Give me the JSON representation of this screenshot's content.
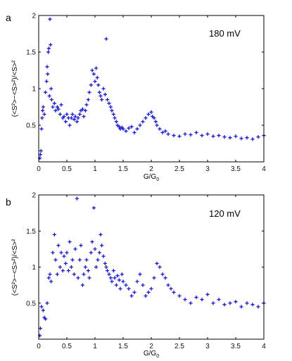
{
  "chart_data": [
    {
      "type": "scatter",
      "panel_label": "a",
      "annotation": "180 mV",
      "xlabel": "G/G",
      "xlabel_sub": "0",
      "ylabel": "(<S²>−<S>²)/<S>²",
      "xlim": [
        0,
        4
      ],
      "ylim": [
        0,
        2
      ],
      "xticks": [
        "0",
        "0.5",
        "1",
        "1.5",
        "2",
        "2.5",
        "3",
        "3.5",
        "4"
      ],
      "yticks": [
        "0.5",
        "1",
        "1.5",
        "2"
      ],
      "grid": false,
      "marker_color": "#1515e0",
      "x": [
        0.02,
        0.03,
        0.04,
        0.05,
        0.06,
        0.07,
        0.08,
        0.1,
        0.12,
        0.14,
        0.15,
        0.16,
        0.17,
        0.18,
        0.19,
        0.2,
        0.21,
        0.22,
        0.23,
        0.25,
        0.28,
        0.3,
        0.33,
        0.35,
        0.38,
        0.4,
        0.43,
        0.45,
        0.48,
        0.5,
        0.53,
        0.55,
        0.58,
        0.6,
        0.63,
        0.65,
        0.68,
        0.7,
        0.73,
        0.75,
        0.78,
        0.8,
        0.83,
        0.85,
        0.88,
        0.9,
        0.93,
        0.95,
        0.98,
        1.0,
        1.02,
        1.04,
        1.06,
        1.08,
        1.1,
        1.12,
        1.15,
        1.18,
        1.2,
        1.22,
        1.25,
        1.28,
        1.3,
        1.33,
        1.35,
        1.38,
        1.4,
        1.43,
        1.45,
        1.48,
        1.5,
        1.55,
        1.6,
        1.65,
        1.7,
        1.75,
        1.8,
        1.85,
        1.9,
        1.95,
        2.0,
        2.02,
        2.05,
        2.08,
        2.1,
        2.15,
        2.2,
        2.25,
        2.3,
        2.4,
        2.5,
        2.6,
        2.7,
        2.8,
        2.9,
        3.0,
        3.1,
        3.2,
        3.3,
        3.4,
        3.5,
        3.6,
        3.7,
        3.8,
        3.9,
        4.0
      ],
      "y": [
        0.05,
        0.1,
        0.15,
        0.45,
        0.6,
        0.7,
        0.75,
        0.65,
        0.95,
        1.1,
        1.3,
        1.2,
        1.5,
        1.55,
        0.9,
        1.95,
        1.6,
        1.0,
        0.85,
        0.75,
        0.8,
        0.7,
        0.75,
        0.72,
        0.65,
        0.78,
        0.6,
        0.62,
        0.55,
        0.65,
        0.6,
        0.5,
        0.6,
        0.65,
        0.58,
        0.62,
        0.55,
        0.6,
        0.65,
        0.7,
        0.72,
        0.62,
        0.7,
        0.78,
        0.85,
        0.95,
        1.05,
        1.25,
        1.2,
        1.1,
        1.28,
        1.15,
        1.05,
        0.95,
        0.9,
        0.85,
        1.0,
        0.92,
        1.68,
        0.85,
        0.8,
        0.75,
        0.7,
        0.65,
        0.6,
        0.55,
        0.5,
        0.48,
        0.45,
        0.47,
        0.45,
        0.42,
        0.46,
        0.48,
        0.4,
        0.45,
        0.5,
        0.55,
        0.6,
        0.65,
        0.68,
        0.62,
        0.6,
        0.55,
        0.5,
        0.45,
        0.4,
        0.42,
        0.38,
        0.36,
        0.35,
        0.38,
        0.37,
        0.4,
        0.36,
        0.38,
        0.35,
        0.36,
        0.34,
        0.33,
        0.35,
        0.32,
        0.33,
        0.31,
        0.34,
        0.36
      ]
    },
    {
      "type": "scatter",
      "panel_label": "b",
      "annotation": "120 mV",
      "xlabel": "G/G",
      "xlabel_sub": "0",
      "ylabel": "(<S²>−<S>²)/<S>²",
      "xlim": [
        0,
        4
      ],
      "ylim": [
        0,
        2
      ],
      "xticks": [
        "0",
        "0.5",
        "1",
        "1.5",
        "2",
        "2.5",
        "3",
        "3.5",
        "4"
      ],
      "yticks": [
        "0.5",
        "1",
        "1.5",
        "2"
      ],
      "grid": false,
      "marker_color": "#1515e0",
      "x": [
        0.02,
        0.03,
        0.05,
        0.08,
        0.1,
        0.12,
        0.15,
        0.18,
        0.2,
        0.22,
        0.25,
        0.28,
        0.3,
        0.33,
        0.35,
        0.38,
        0.4,
        0.43,
        0.45,
        0.48,
        0.5,
        0.53,
        0.55,
        0.58,
        0.6,
        0.63,
        0.65,
        0.68,
        0.7,
        0.73,
        0.75,
        0.78,
        0.8,
        0.83,
        0.85,
        0.88,
        0.9,
        0.93,
        0.95,
        0.98,
        1.0,
        1.02,
        1.05,
        1.08,
        1.1,
        1.12,
        1.15,
        1.18,
        1.2,
        1.22,
        1.25,
        1.28,
        1.3,
        1.33,
        1.35,
        1.38,
        1.4,
        1.43,
        1.45,
        1.48,
        1.5,
        1.55,
        1.6,
        1.65,
        1.7,
        1.75,
        1.8,
        1.85,
        1.9,
        1.95,
        2.0,
        2.05,
        2.1,
        2.15,
        2.2,
        2.25,
        2.3,
        2.35,
        2.4,
        2.5,
        2.6,
        2.7,
        2.8,
        2.9,
        3.0,
        3.1,
        3.2,
        3.3,
        3.4,
        3.5,
        3.6,
        3.7,
        3.8,
        3.9,
        4.0
      ],
      "y": [
        0.05,
        0.15,
        0.45,
        0.4,
        0.3,
        0.28,
        0.5,
        0.85,
        0.9,
        0.8,
        1.2,
        1.45,
        1.1,
        0.9,
        1.3,
        1.0,
        1.2,
        0.95,
        1.15,
        1.05,
        1.2,
        0.95,
        1.35,
        1.0,
        1.1,
        0.9,
        1.25,
        1.95,
        0.85,
        1.1,
        1.3,
        0.75,
        0.9,
        1.0,
        1.1,
        0.95,
        0.85,
        1.2,
        1.35,
        1.82,
        1.25,
        1.0,
        1.1,
        1.2,
        1.45,
        1.3,
        1.15,
        1.05,
        1.0,
        0.95,
        0.9,
        0.85,
        0.8,
        0.95,
        0.85,
        0.75,
        0.88,
        0.82,
        0.7,
        0.9,
        0.8,
        0.75,
        0.7,
        0.6,
        0.65,
        0.8,
        0.9,
        0.75,
        0.6,
        0.65,
        0.7,
        0.85,
        1.05,
        1.0,
        0.9,
        0.85,
        0.75,
        0.7,
        0.65,
        0.6,
        0.55,
        0.5,
        0.58,
        0.55,
        0.62,
        0.5,
        0.55,
        0.48,
        0.5,
        0.52,
        0.45,
        0.5,
        0.48,
        0.45,
        0.5
      ]
    }
  ]
}
